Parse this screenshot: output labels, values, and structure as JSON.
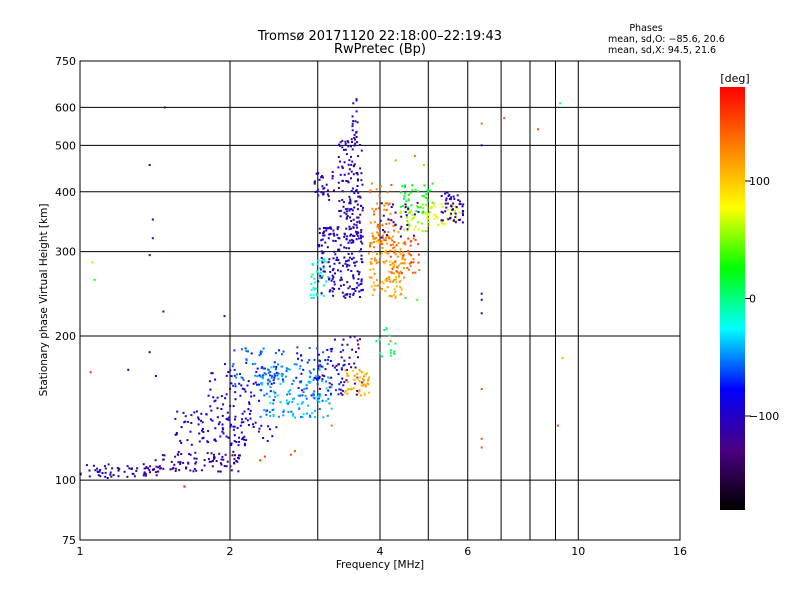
{
  "chart_data": {
    "type": "scatter",
    "title": "Tromsø 20171120 22:18:00–22:19:43",
    "subtitle": "RwPretec (Bp)",
    "xlabel": "Frequency [MHz]",
    "ylabel": "Stationary phase Virtual Height [km]",
    "x_scale": "log",
    "y_scale": "log",
    "xlim": [
      1,
      16
    ],
    "ylim": [
      75,
      750
    ],
    "x_ticks": [
      1,
      2,
      4,
      6,
      10,
      16
    ],
    "x_tick_labels": [
      "1",
      "2",
      "4",
      "6",
      "10",
      "16"
    ],
    "y_ticks": [
      75,
      100,
      200,
      300,
      400,
      500,
      600,
      750
    ],
    "y_tick_labels": [
      "75",
      "100",
      "200",
      "300",
      "400",
      "500",
      "600",
      "750"
    ],
    "x_gridlines": [
      1,
      2,
      3,
      4,
      5,
      6,
      7,
      8,
      9,
      10,
      16
    ],
    "y_gridlines": [
      75,
      100,
      200,
      300,
      400,
      500,
      600,
      750
    ],
    "grid": true,
    "legend": {
      "title": "Phases",
      "lines": [
        "mean, sd,O: −85.6, 20.6",
        "mean, sd,X:  94.5, 21.6"
      ],
      "placement": "top-right"
    },
    "colorbar": {
      "label": "[deg]",
      "range": [
        -180,
        180
      ],
      "ticks": [
        -100,
        0,
        100
      ],
      "tick_labels": [
        "−100",
        "0",
        "100"
      ],
      "colors": [
        "#000000",
        "#4b0082",
        "#0000ff",
        "#00ffff",
        "#00ff00",
        "#ffff00",
        "#ff8000",
        "#ff0000"
      ]
    },
    "clusters": [
      {
        "f": [
          1.0,
          1.45
        ],
        "h": [
          101,
          108
        ],
        "phase": -110,
        "n": 60
      },
      {
        "f": [
          1.4,
          2.1
        ],
        "h": [
          104,
          115
        ],
        "phase": -115,
        "n": 90
      },
      {
        "f": [
          1.55,
          2.2
        ],
        "h": [
          118,
          140
        ],
        "phase": -100,
        "n": 80
      },
      {
        "f": [
          1.8,
          2.5
        ],
        "h": [
          120,
          175
        ],
        "phase": -95,
        "n": 90
      },
      {
        "f": [
          2.0,
          2.6
        ],
        "h": [
          150,
          190
        ],
        "phase": -60,
        "n": 60
      },
      {
        "f": [
          2.3,
          3.2
        ],
        "h": [
          135,
          175
        ],
        "phase": -45,
        "n": 150
      },
      {
        "f": [
          2.7,
          3.4
        ],
        "h": [
          150,
          190
        ],
        "phase": -70,
        "n": 60
      },
      {
        "f": [
          3.0,
          3.7
        ],
        "h": [
          150,
          200
        ],
        "phase": -120,
        "n": 50
      },
      {
        "f": [
          3.4,
          3.85
        ],
        "h": [
          150,
          170
        ],
        "phase": 110,
        "n": 50
      },
      {
        "f": [
          2.9,
          3.15
        ],
        "h": [
          240,
          290
        ],
        "phase": -20,
        "n": 40
      },
      {
        "f": [
          3.0,
          3.7
        ],
        "h": [
          240,
          340
        ],
        "phase": -105,
        "n": 200
      },
      {
        "f": [
          3.3,
          3.7
        ],
        "h": [
          340,
          520
        ],
        "phase": -110,
        "n": 120
      },
      {
        "f": [
          3.5,
          3.65
        ],
        "h": [
          520,
          640
        ],
        "phase": -105,
        "n": 15
      },
      {
        "f": [
          2.95,
          3.25
        ],
        "h": [
          380,
          440
        ],
        "phase": -115,
        "n": 30
      },
      {
        "f": [
          3.8,
          4.5
        ],
        "h": [
          240,
          330
        ],
        "phase": 115,
        "n": 130
      },
      {
        "f": [
          3.8,
          4.3
        ],
        "h": [
          300,
          420
        ],
        "phase": 135,
        "n": 60
      },
      {
        "f": [
          4.2,
          4.8
        ],
        "h": [
          270,
          320
        ],
        "phase": 145,
        "n": 40
      },
      {
        "f": [
          4.4,
          5.0
        ],
        "h": [
          330,
          380
        ],
        "phase": 60,
        "n": 40
      },
      {
        "f": [
          4.4,
          5.1
        ],
        "h": [
          360,
          420
        ],
        "phase": 20,
        "n": 40
      },
      {
        "f": [
          4.0,
          4.8
        ],
        "h": [
          320,
          380
        ],
        "phase": -110,
        "n": 30
      },
      {
        "f": [
          5.0,
          5.8
        ],
        "h": [
          340,
          380
        ],
        "phase": 75,
        "n": 40
      },
      {
        "f": [
          5.3,
          5.9
        ],
        "h": [
          345,
          400
        ],
        "phase": -110,
        "n": 50
      },
      {
        "f": [
          3.9,
          4.3
        ],
        "h": [
          180,
          210
        ],
        "phase": 5,
        "n": 15
      }
    ],
    "points": [
      {
        "x": 1.48,
        "y": 600,
        "phase": -120
      },
      {
        "x": 1.38,
        "y": 455,
        "phase": -110
      },
      {
        "x": 1.4,
        "y": 350,
        "phase": -110
      },
      {
        "x": 1.4,
        "y": 320,
        "phase": -110
      },
      {
        "x": 1.38,
        "y": 295,
        "phase": -110
      },
      {
        "x": 1.47,
        "y": 225,
        "phase": -115
      },
      {
        "x": 1.38,
        "y": 185,
        "phase": -110
      },
      {
        "x": 1.06,
        "y": 285,
        "phase": 60
      },
      {
        "x": 1.07,
        "y": 262,
        "phase": 20
      },
      {
        "x": 1.05,
        "y": 168,
        "phase": 160
      },
      {
        "x": 1.25,
        "y": 170,
        "phase": -110
      },
      {
        "x": 1.42,
        "y": 165,
        "phase": -110
      },
      {
        "x": 1.62,
        "y": 97,
        "phase": 175
      },
      {
        "x": 1.95,
        "y": 220,
        "phase": -110
      },
      {
        "x": 2.3,
        "y": 110,
        "phase": 155
      },
      {
        "x": 2.35,
        "y": 112,
        "phase": 155
      },
      {
        "x": 2.7,
        "y": 115,
        "phase": 150
      },
      {
        "x": 2.65,
        "y": 113,
        "phase": 150
      },
      {
        "x": 3.2,
        "y": 130,
        "phase": 140
      },
      {
        "x": 6.4,
        "y": 555,
        "phase": 140
      },
      {
        "x": 6.4,
        "y": 500,
        "phase": -110
      },
      {
        "x": 7.1,
        "y": 570,
        "phase": 150
      },
      {
        "x": 8.3,
        "y": 540,
        "phase": 150
      },
      {
        "x": 9.2,
        "y": 612,
        "phase": -30
      },
      {
        "x": 6.4,
        "y": 245,
        "phase": -110
      },
      {
        "x": 6.4,
        "y": 238,
        "phase": -110
      },
      {
        "x": 6.4,
        "y": 223,
        "phase": -110
      },
      {
        "x": 6.4,
        "y": 155,
        "phase": 150
      },
      {
        "x": 6.4,
        "y": 122,
        "phase": 150
      },
      {
        "x": 6.4,
        "y": 117,
        "phase": 150
      },
      {
        "x": 9.3,
        "y": 180,
        "phase": 110
      },
      {
        "x": 9.1,
        "y": 130,
        "phase": 150
      },
      {
        "x": 4.5,
        "y": 240,
        "phase": 30
      },
      {
        "x": 4.75,
        "y": 238,
        "phase": 40
      },
      {
        "x": 4.2,
        "y": 195,
        "phase": 130
      },
      {
        "x": 4.7,
        "y": 475,
        "phase": 130
      },
      {
        "x": 4.3,
        "y": 465,
        "phase": 120
      },
      {
        "x": 4.9,
        "y": 455,
        "phase": 110
      }
    ]
  }
}
